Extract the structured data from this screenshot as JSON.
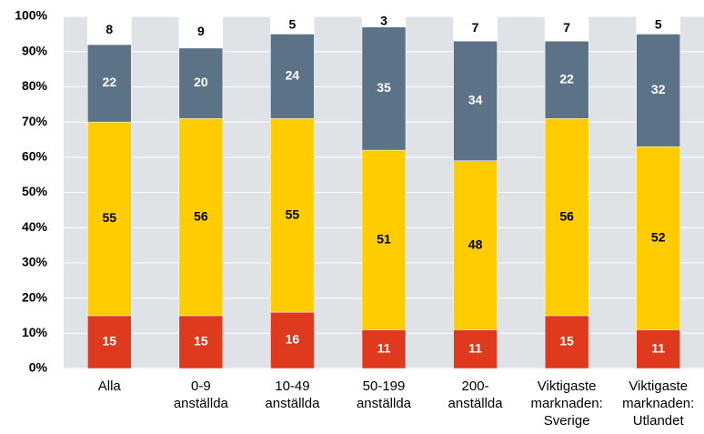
{
  "chart_data": {
    "type": "stacked_bar",
    "categories": [
      [
        "Alla"
      ],
      [
        "0-9",
        "anställda"
      ],
      [
        "10-49",
        "anställda"
      ],
      [
        "50-199",
        "anställda"
      ],
      [
        "200-",
        "anställda"
      ],
      [
        "Viktigaste",
        "marknaden:",
        "Sverige"
      ],
      [
        "Viktigaste",
        "marknaden:",
        "Utlandet"
      ]
    ],
    "series": [
      {
        "color": "#e03a1e",
        "label_color": "#ffffff",
        "values": [
          15,
          15,
          16,
          11,
          11,
          15,
          11
        ]
      },
      {
        "color": "#ffcc00",
        "label_color": "#000000",
        "values": [
          55,
          56,
          55,
          51,
          48,
          56,
          52
        ]
      },
      {
        "color": "#5c7287",
        "label_color": "#ffffff",
        "values": [
          22,
          20,
          24,
          35,
          34,
          22,
          32
        ]
      },
      {
        "color": "#ffffff",
        "label_color": "#000000",
        "values": [
          8,
          9,
          5,
          3,
          7,
          7,
          5
        ]
      }
    ],
    "ylim": [
      0,
      100
    ],
    "yticks": [
      {
        "value": 0,
        "label": "0%"
      },
      {
        "value": 10,
        "label": "10%"
      },
      {
        "value": 20,
        "label": "20%"
      },
      {
        "value": 30,
        "label": "30%"
      },
      {
        "value": 40,
        "label": "40%"
      },
      {
        "value": 50,
        "label": "50%"
      },
      {
        "value": 60,
        "label": "60%"
      },
      {
        "value": 70,
        "label": "70%"
      },
      {
        "value": 80,
        "label": "80%"
      },
      {
        "value": 90,
        "label": "90%"
      },
      {
        "value": 100,
        "label": "100%"
      }
    ],
    "grid": true
  }
}
